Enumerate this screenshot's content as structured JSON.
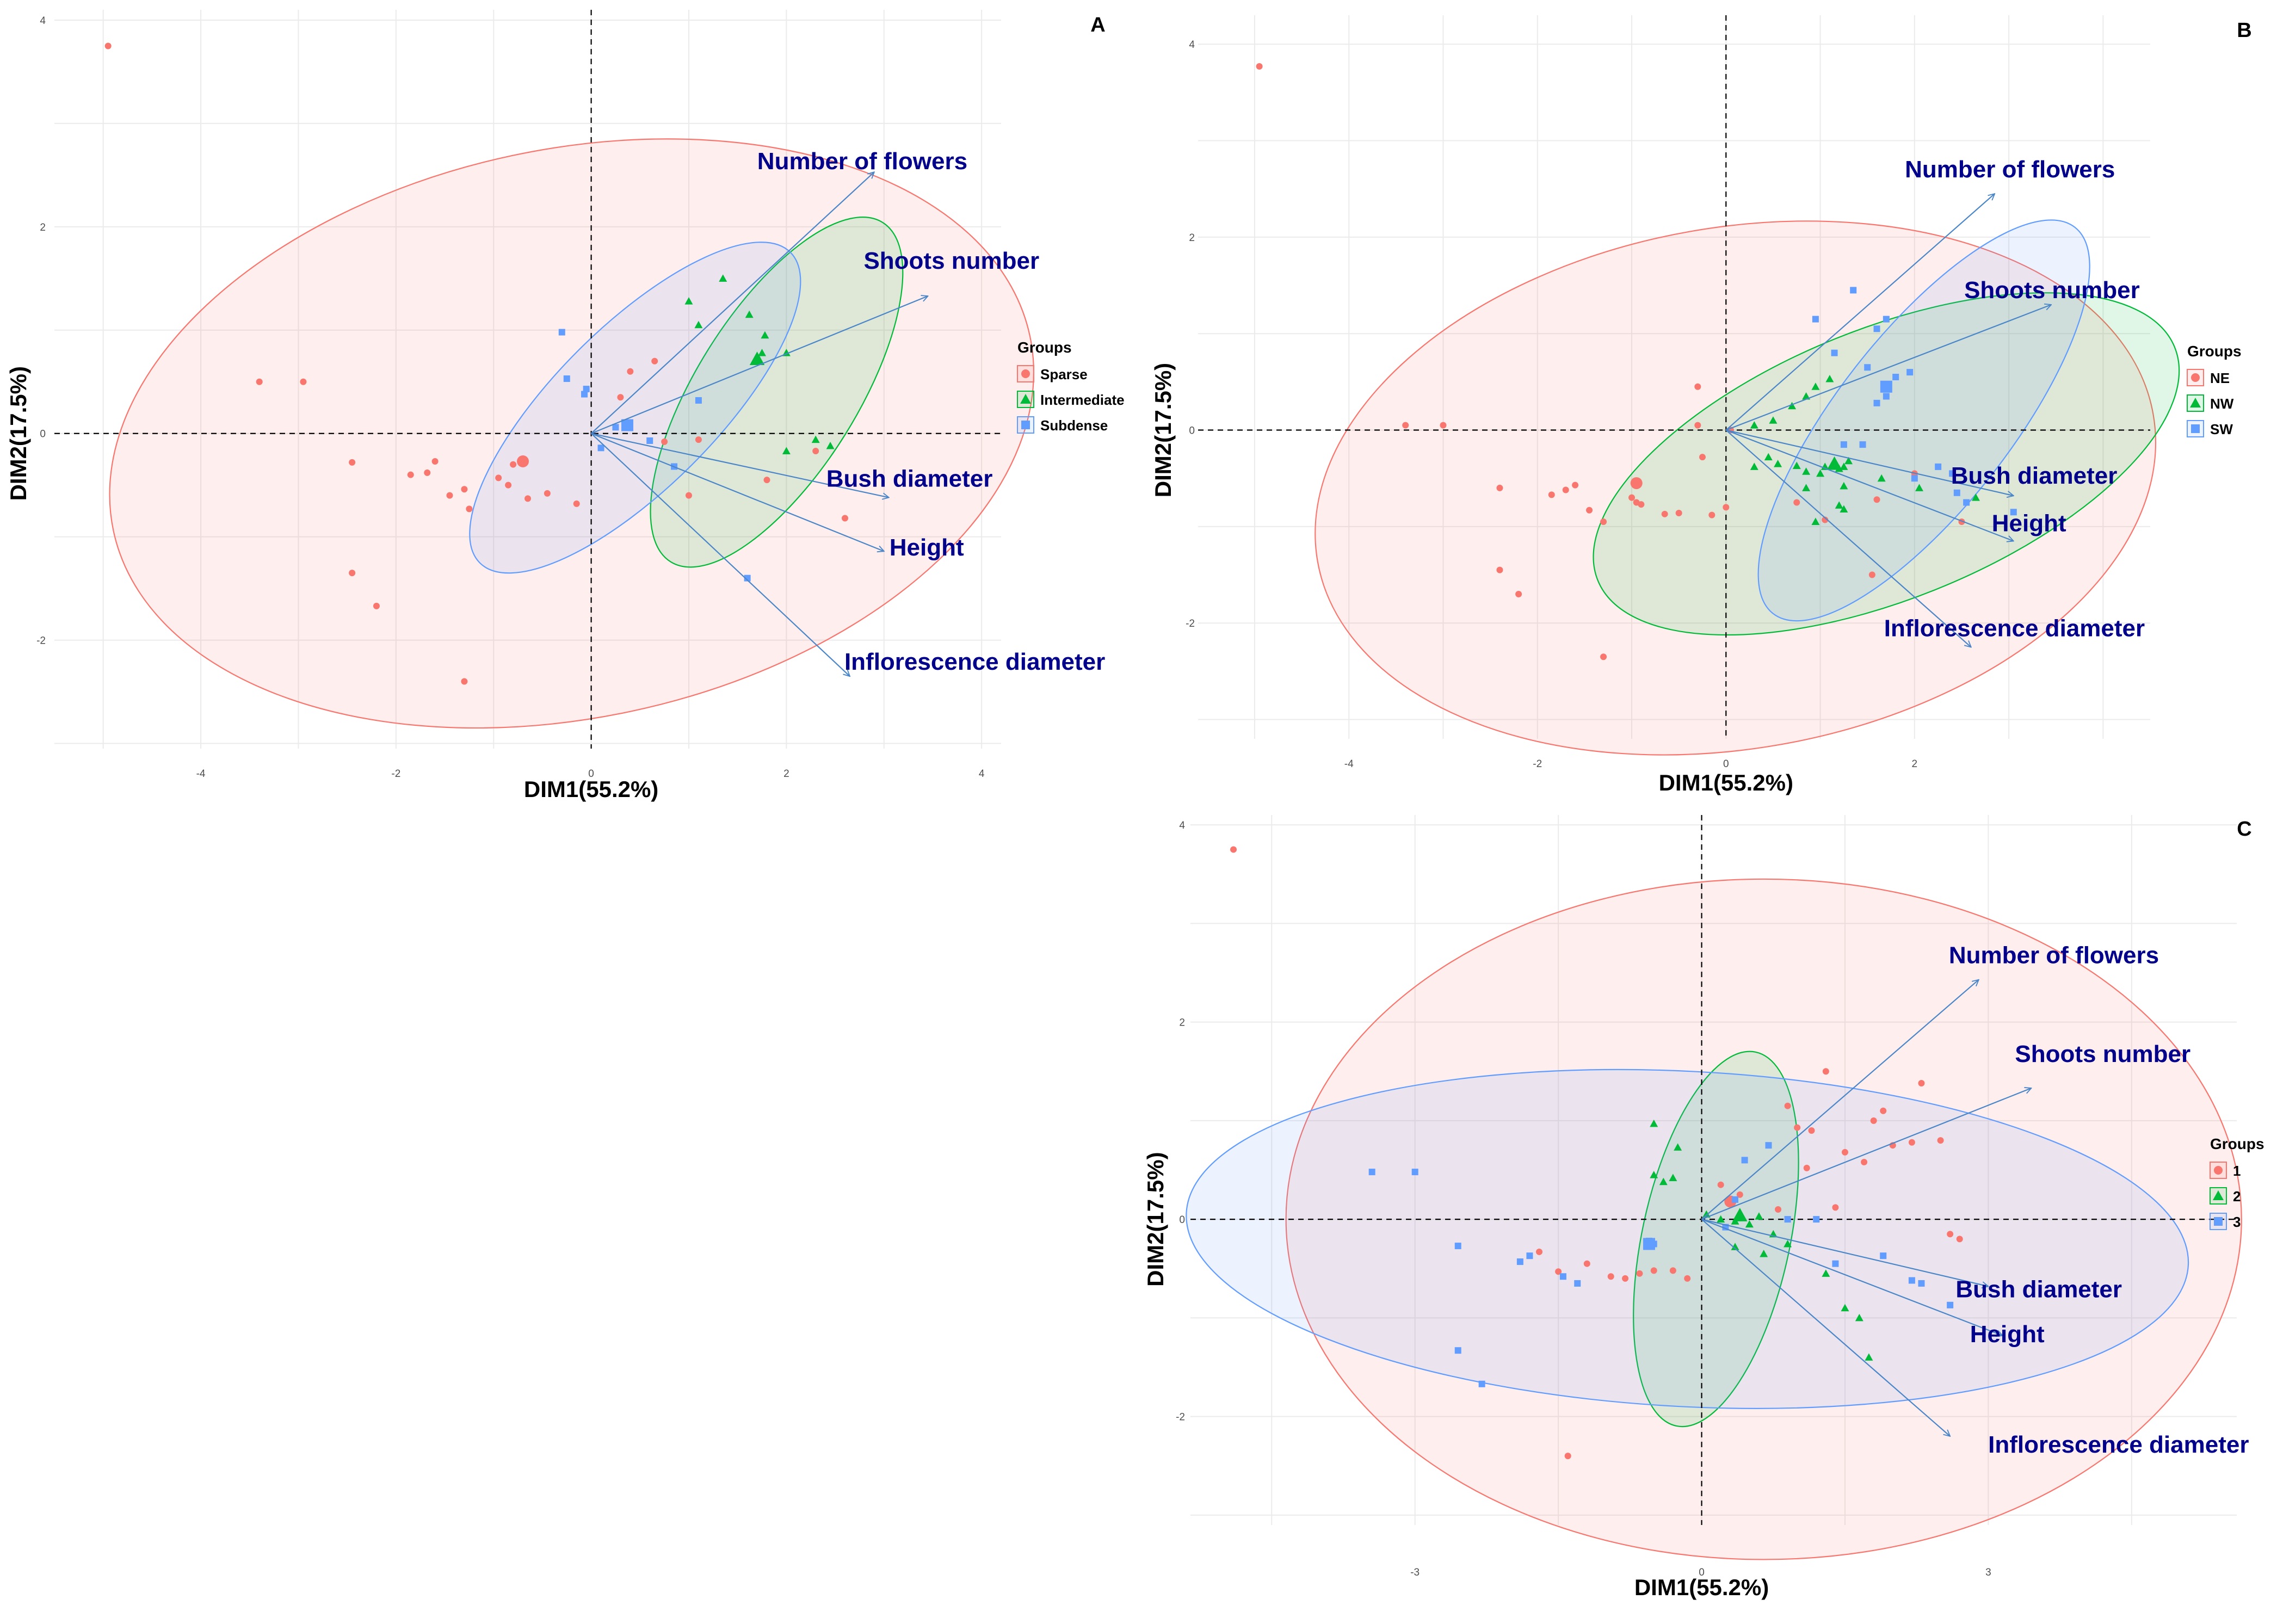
{
  "colors": {
    "group1": "#f8766d",
    "group2": "#00ba38",
    "group3": "#619cff",
    "arrow": "#4a86c8",
    "var_label": "#00008b"
  },
  "chart_data": [
    {
      "id": "A",
      "type": "scatter",
      "panel_label": "A",
      "xlabel": "DIM1(55.2%)",
      "ylabel": "DIM2(17.5%)",
      "xlim": [
        -5.5,
        4.2
      ],
      "ylim": [
        -3.05,
        4.1
      ],
      "xticks": [
        -4,
        -2,
        0,
        2,
        4
      ],
      "yticks": [
        -2,
        0,
        2,
        4
      ],
      "legend": {
        "title": "Groups",
        "position": "right"
      },
      "groups": [
        {
          "name": "Sparse",
          "shape": "circle",
          "color": "#f8766d",
          "points": [
            [
              -4.95,
              3.75
            ],
            [
              -3.4,
              0.5
            ],
            [
              -2.95,
              0.5
            ],
            [
              -2.45,
              -0.28
            ],
            [
              -2.45,
              -1.35
            ],
            [
              -2.2,
              -1.67
            ],
            [
              -1.85,
              -0.4
            ],
            [
              -1.68,
              -0.38
            ],
            [
              -1.6,
              -0.27
            ],
            [
              -1.45,
              -0.6
            ],
            [
              -1.3,
              -0.54
            ],
            [
              -1.25,
              -0.73
            ],
            [
              -1.3,
              -2.4
            ],
            [
              -0.95,
              -0.43
            ],
            [
              -0.85,
              -0.5
            ],
            [
              -0.8,
              -0.3
            ],
            [
              -0.65,
              -0.63
            ],
            [
              -0.45,
              -0.58
            ],
            [
              -0.15,
              -0.68
            ],
            [
              0.3,
              0.35
            ],
            [
              0.4,
              0.6
            ],
            [
              0.65,
              0.7
            ],
            [
              0.75,
              -0.08
            ],
            [
              1.1,
              -0.06
            ],
            [
              1.0,
              -0.6
            ],
            [
              1.8,
              -0.45
            ],
            [
              2.3,
              -0.17
            ],
            [
              2.6,
              -0.82
            ]
          ],
          "ellipse": {
            "center": [
              -0.2,
              0.0
            ],
            "rx": 4.8,
            "ry": 2.75,
            "angle": -12
          },
          "centroid": [
            -0.7,
            -0.27
          ]
        },
        {
          "name": "Intermediate",
          "shape": "triangle",
          "color": "#00ba38",
          "points": [
            [
              1.0,
              1.28
            ],
            [
              1.35,
              1.5
            ],
            [
              1.1,
              1.05
            ],
            [
              1.62,
              1.15
            ],
            [
              1.78,
              0.95
            ],
            [
              1.75,
              0.78
            ],
            [
              2.0,
              0.78
            ],
            [
              2.0,
              -0.17
            ],
            [
              2.3,
              -0.06
            ],
            [
              2.45,
              -0.12
            ]
          ],
          "ellipse": {
            "center": [
              1.9,
              0.4
            ],
            "rx": 2.05,
            "ry": 0.78,
            "angle": -58
          },
          "centroid": [
            1.7,
            0.72
          ]
        },
        {
          "name": "Subdense",
          "shape": "square",
          "color": "#619cff",
          "points": [
            [
              -0.3,
              0.98
            ],
            [
              -0.25,
              0.53
            ],
            [
              -0.05,
              0.43
            ],
            [
              -0.07,
              0.38
            ],
            [
              0.25,
              0.06
            ],
            [
              0.1,
              -0.14
            ],
            [
              0.6,
              -0.07
            ],
            [
              0.85,
              -0.32
            ],
            [
              1.1,
              0.32
            ],
            [
              1.6,
              -1.4
            ]
          ],
          "ellipse": {
            "center": [
              0.45,
              0.25
            ],
            "rx": 2.25,
            "ry": 0.78,
            "angle": -45
          },
          "centroid": [
            0.37,
            0.08
          ]
        }
      ],
      "variables": [
        {
          "name": "Number of flowers",
          "x": 2.9,
          "y": 2.53
        },
        {
          "name": "Shoots number",
          "x": 3.45,
          "y": 1.33
        },
        {
          "name": "Bush diameter",
          "x": 3.05,
          "y": -0.62
        },
        {
          "name": "Height",
          "x": 3.0,
          "y": -1.14
        },
        {
          "name": "Inflorescence diameter",
          "x": 2.65,
          "y": -2.35
        }
      ]
    },
    {
      "id": "B",
      "type": "scatter",
      "panel_label": "B",
      "xlabel": "DIM1(55.2%)",
      "ylabel": "DIM2(17.5%)",
      "xlim": [
        -5.6,
        4.5
      ],
      "ylim": [
        -3.2,
        4.3
      ],
      "xticks": [
        -4,
        -2,
        0,
        2
      ],
      "yticks": [
        -2,
        0,
        2,
        4
      ],
      "legend": {
        "title": "Groups",
        "position": "right"
      },
      "groups": [
        {
          "name": "NE",
          "shape": "circle",
          "color": "#f8766d",
          "points": [
            [
              -4.95,
              3.77
            ],
            [
              -3.4,
              0.05
            ],
            [
              -3.0,
              0.05
            ],
            [
              -2.4,
              -0.6
            ],
            [
              -2.4,
              -1.45
            ],
            [
              -2.2,
              -1.7
            ],
            [
              -1.85,
              -0.67
            ],
            [
              -1.7,
              -0.62
            ],
            [
              -1.6,
              -0.57
            ],
            [
              -1.45,
              -0.83
            ],
            [
              -1.3,
              -0.95
            ],
            [
              -1.3,
              -2.35
            ],
            [
              -1.0,
              -0.7
            ],
            [
              -0.95,
              -0.75
            ],
            [
              -0.9,
              -0.77
            ],
            [
              -0.65,
              -0.87
            ],
            [
              -0.5,
              -0.86
            ],
            [
              -0.15,
              -0.88
            ],
            [
              0.0,
              -0.8
            ],
            [
              -0.3,
              0.05
            ],
            [
              -0.3,
              0.45
            ],
            [
              0.05,
              0.0
            ],
            [
              -0.25,
              -0.28
            ],
            [
              0.75,
              -0.75
            ],
            [
              1.05,
              -0.93
            ],
            [
              1.6,
              -0.72
            ],
            [
              2.0,
              -0.45
            ],
            [
              2.4,
              -0.45
            ],
            [
              1.55,
              -1.5
            ],
            [
              2.5,
              -0.95
            ]
          ],
          "ellipse": {
            "center": [
              0.1,
              -0.6
            ],
            "rx": 4.5,
            "ry": 2.7,
            "angle": -10
          },
          "centroid": [
            -0.95,
            -0.55
          ]
        },
        {
          "name": "NW",
          "shape": "triangle",
          "color": "#00ba38",
          "points": [
            [
              0.3,
              -0.38
            ],
            [
              0.45,
              -0.28
            ],
            [
              0.55,
              -0.35
            ],
            [
              0.75,
              -0.37
            ],
            [
              0.85,
              -0.43
            ],
            [
              1.0,
              -0.45
            ],
            [
              1.05,
              -0.38
            ],
            [
              0.3,
              0.05
            ],
            [
              0.5,
              0.1
            ],
            [
              0.7,
              0.25
            ],
            [
              0.85,
              0.35
            ],
            [
              0.95,
              0.45
            ],
            [
              1.1,
              0.53
            ],
            [
              1.2,
              -0.4
            ],
            [
              1.25,
              -0.38
            ],
            [
              1.3,
              -0.32
            ],
            [
              1.25,
              -0.58
            ],
            [
              0.85,
              -0.6
            ],
            [
              1.2,
              -0.78
            ],
            [
              1.25,
              -0.82
            ],
            [
              1.65,
              -0.5
            ],
            [
              2.05,
              -0.6
            ],
            [
              0.95,
              -0.95
            ],
            [
              2.65,
              -0.7
            ]
          ],
          "ellipse": {
            "center": [
              1.7,
              -0.35
            ],
            "rx": 3.3,
            "ry": 1.4,
            "angle": -22
          },
          "centroid": [
            1.15,
            -0.35
          ]
        },
        {
          "name": "SW",
          "shape": "square",
          "color": "#619cff",
          "points": [
            [
              0.95,
              1.15
            ],
            [
              1.35,
              1.45
            ],
            [
              1.15,
              0.8
            ],
            [
              1.5,
              0.65
            ],
            [
              1.6,
              1.05
            ],
            [
              1.7,
              1.15
            ],
            [
              1.8,
              0.55
            ],
            [
              1.95,
              0.6
            ],
            [
              1.6,
              0.28
            ],
            [
              1.7,
              0.35
            ],
            [
              1.25,
              -0.15
            ],
            [
              1.45,
              -0.15
            ],
            [
              2.0,
              -0.5
            ],
            [
              2.25,
              -0.38
            ],
            [
              2.4,
              -0.45
            ],
            [
              2.45,
              -0.65
            ],
            [
              2.55,
              -0.75
            ],
            [
              3.05,
              -0.85
            ]
          ],
          "ellipse": {
            "center": [
              2.1,
              0.1
            ],
            "rx": 2.6,
            "ry": 0.9,
            "angle": -52
          },
          "centroid": [
            1.7,
            0.45
          ]
        }
      ],
      "variables": [
        {
          "name": "Number of flowers",
          "x": 2.85,
          "y": 2.45
        },
        {
          "name": "Shoots number",
          "x": 3.45,
          "y": 1.3
        },
        {
          "name": "Bush diameter",
          "x": 3.05,
          "y": -0.68
        },
        {
          "name": "Height",
          "x": 3.05,
          "y": -1.15
        },
        {
          "name": "Inflorescence diameter",
          "x": 2.6,
          "y": -2.25
        }
      ]
    },
    {
      "id": "C",
      "type": "scatter",
      "panel_label": "C",
      "xlabel": "DIM1(55.2%)",
      "ylabel": "DIM2(17.5%)",
      "xlim": [
        -5.35,
        5.6
      ],
      "ylim": [
        -3.1,
        4.1
      ],
      "xticks": [
        -3,
        0,
        3
      ],
      "yticks": [
        -2,
        0,
        2,
        4
      ],
      "legend": {
        "title": "Groups",
        "position": "right"
      },
      "groups": [
        {
          "name": "1",
          "shape": "circle",
          "color": "#f8766d",
          "points": [
            [
              -4.9,
              3.75
            ],
            [
              -1.7,
              -0.33
            ],
            [
              -1.5,
              -0.53
            ],
            [
              -1.2,
              -0.45
            ],
            [
              -0.95,
              -0.58
            ],
            [
              -0.8,
              -0.6
            ],
            [
              -0.65,
              -0.55
            ],
            [
              -0.5,
              -0.52
            ],
            [
              -0.3,
              -0.52
            ],
            [
              -0.15,
              -0.6
            ],
            [
              0.2,
              0.35
            ],
            [
              0.4,
              0.25
            ],
            [
              0.8,
              0.1
            ],
            [
              0.9,
              1.15
            ],
            [
              1.0,
              0.93
            ],
            [
              1.1,
              0.52
            ],
            [
              1.15,
              0.9
            ],
            [
              1.3,
              1.5
            ],
            [
              1.4,
              0.12
            ],
            [
              1.5,
              0.68
            ],
            [
              1.7,
              0.58
            ],
            [
              1.8,
              1.0
            ],
            [
              1.9,
              1.1
            ],
            [
              2.0,
              0.75
            ],
            [
              2.2,
              0.78
            ],
            [
              2.3,
              1.38
            ],
            [
              2.5,
              0.8
            ],
            [
              2.6,
              -0.15
            ],
            [
              2.7,
              -0.2
            ],
            [
              -1.4,
              -2.4
            ]
          ],
          "ellipse": {
            "center": [
              0.65,
              0.0
            ],
            "rx": 5.0,
            "ry": 3.45,
            "angle": 0
          },
          "centroid": [
            0.3,
            0.18
          ]
        },
        {
          "name": "2",
          "shape": "triangle",
          "color": "#00ba38",
          "points": [
            [
              -0.25,
              0.73
            ],
            [
              -0.4,
              0.38
            ],
            [
              -0.5,
              0.45
            ],
            [
              -0.5,
              0.97
            ],
            [
              -0.3,
              0.42
            ],
            [
              0.05,
              0.05
            ],
            [
              0.2,
              0.0
            ],
            [
              0.35,
              -0.02
            ],
            [
              0.5,
              -0.05
            ],
            [
              0.6,
              0.03
            ],
            [
              0.75,
              -0.15
            ],
            [
              0.9,
              -0.25
            ],
            [
              1.3,
              -0.55
            ],
            [
              1.5,
              -0.9
            ],
            [
              1.65,
              -1.0
            ],
            [
              1.75,
              -1.4
            ],
            [
              0.35,
              -0.28
            ],
            [
              0.65,
              -0.35
            ]
          ],
          "ellipse": {
            "center": [
              0.15,
              -0.2
            ],
            "rx": 2.0,
            "ry": 0.75,
            "angle": -78
          },
          "centroid": [
            0.4,
            0.04
          ]
        },
        {
          "name": "3",
          "shape": "square",
          "color": "#619cff",
          "points": [
            [
              -3.45,
              0.48
            ],
            [
              -3.0,
              0.48
            ],
            [
              -2.55,
              -0.27
            ],
            [
              -2.55,
              -1.33
            ],
            [
              -2.3,
              -1.67
            ],
            [
              -1.9,
              -0.43
            ],
            [
              -1.8,
              -0.37
            ],
            [
              -1.45,
              -0.58
            ],
            [
              -1.3,
              -0.65
            ],
            [
              -0.5,
              -0.25
            ],
            [
              -0.55,
              -0.22
            ],
            [
              0.25,
              -0.08
            ],
            [
              0.35,
              0.2
            ],
            [
              0.45,
              0.6
            ],
            [
              0.7,
              0.75
            ],
            [
              0.9,
              0.0
            ],
            [
              1.2,
              0.0
            ],
            [
              1.4,
              -0.45
            ],
            [
              1.9,
              -0.37
            ],
            [
              2.2,
              -0.62
            ],
            [
              2.3,
              -0.65
            ],
            [
              2.6,
              -0.87
            ]
          ],
          "ellipse": {
            "center": [
              -0.15,
              -0.2
            ],
            "rx": 5.25,
            "ry": 1.7,
            "angle": 3
          },
          "centroid": [
            -0.55,
            -0.25
          ]
        }
      ],
      "variables": [
        {
          "name": "Number of flowers",
          "x": 2.9,
          "y": 2.43
        },
        {
          "name": "Shoots number",
          "x": 3.45,
          "y": 1.33
        },
        {
          "name": "Bush diameter",
          "x": 3.0,
          "y": -0.68
        },
        {
          "name": "Height",
          "x": 3.15,
          "y": -1.18
        },
        {
          "name": "Inflorescence diameter",
          "x": 2.6,
          "y": -2.2
        }
      ]
    }
  ]
}
